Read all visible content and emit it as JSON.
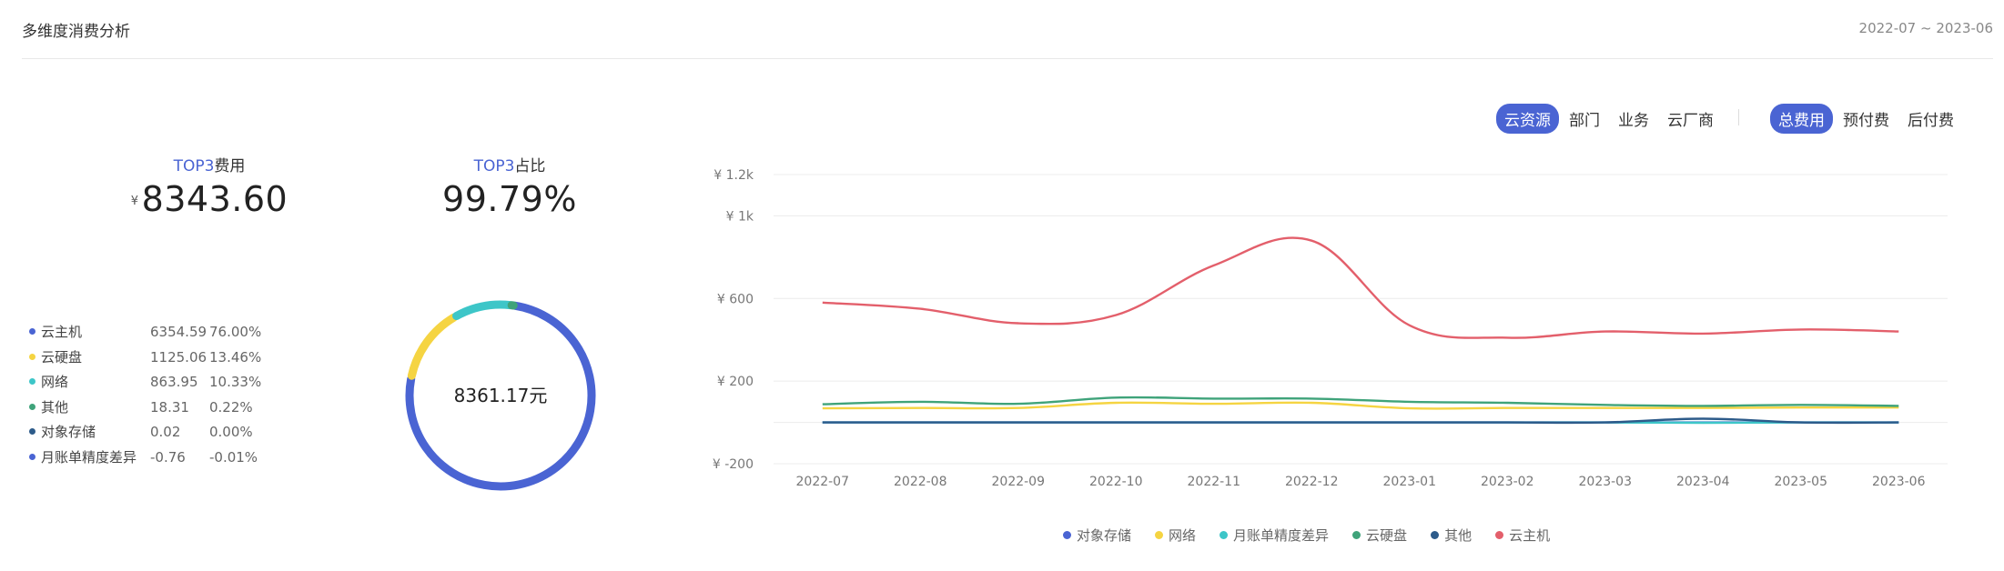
{
  "header": {
    "title": "多维度消费分析",
    "range": "2022-07 ~ 2023-06"
  },
  "stats": {
    "top3_cost": {
      "label_prefix": "TOP3",
      "label_suffix": "费用",
      "currency": "¥",
      "value": "8343.60"
    },
    "top3_ratio": {
      "label_prefix": "TOP3",
      "label_suffix": "占比",
      "value": "99.79%"
    }
  },
  "breakdown": [
    {
      "name": "云主机",
      "amount": "6354.59",
      "percent": "76.00%",
      "color": "#4a64d3"
    },
    {
      "name": "云硬盘",
      "amount": "1125.06",
      "percent": "13.46%",
      "color": "#f5d442"
    },
    {
      "name": "网络",
      "amount": "863.95",
      "percent": "10.33%",
      "color": "#3dc6c8"
    },
    {
      "name": "其他",
      "amount": "18.31",
      "percent": "0.22%",
      "color": "#3fa37a"
    },
    {
      "name": "对象存储",
      "amount": "0.02",
      "percent": "0.00%",
      "color": "#2d5b8a"
    },
    {
      "name": "月账单精度差异",
      "amount": "-0.76",
      "percent": "-0.01%",
      "color": "#4a64d3"
    }
  ],
  "donut": {
    "center_label": "8361.17元",
    "segments": [
      76.0,
      13.46,
      10.33,
      0.22
    ]
  },
  "filters": {
    "dimension": [
      "云资源",
      "部门",
      "业务",
      "云厂商"
    ],
    "dimension_active": 0,
    "fee_type": [
      "总费用",
      "预付费",
      "后付费"
    ],
    "fee_type_active": 0
  },
  "chart_data": {
    "type": "line",
    "categories": [
      "2022-07",
      "2022-08",
      "2022-09",
      "2022-10",
      "2022-11",
      "2022-12",
      "2023-01",
      "2023-02",
      "2023-03",
      "2023-04",
      "2023-05",
      "2023-06"
    ],
    "ytick_labels": [
      "¥ -200",
      "¥ 200",
      "¥ 600",
      "¥ 1k",
      "¥ 1.2k"
    ],
    "ytick_values": [
      -200,
      200,
      600,
      1000,
      1200
    ],
    "ylim": [
      -200,
      1200
    ],
    "grid": true,
    "legend_position": "bottom",
    "series": [
      {
        "name": "对象存储",
        "color": "#4a64d3",
        "values": [
          0,
          0,
          0,
          0,
          0,
          0,
          0,
          0,
          0,
          0,
          0,
          0
        ]
      },
      {
        "name": "网络",
        "color": "#f5d442",
        "values": [
          68,
          70,
          70,
          95,
          90,
          95,
          68,
          70,
          70,
          70,
          72,
          72
        ]
      },
      {
        "name": "月账单精度差异",
        "color": "#3dc6c8",
        "values": [
          0,
          0,
          0,
          0,
          0,
          0,
          0,
          0,
          0,
          -2,
          0,
          0
        ]
      },
      {
        "name": "云硬盘",
        "color": "#3fa37a",
        "values": [
          88,
          100,
          90,
          120,
          115,
          115,
          100,
          95,
          85,
          80,
          85,
          80
        ]
      },
      {
        "name": "其他",
        "color": "#2d5b8a",
        "values": [
          0,
          0,
          0,
          0,
          0,
          0,
          0,
          0,
          0,
          18,
          0,
          0
        ]
      },
      {
        "name": "云主机",
        "color": "#e35f6b",
        "values": [
          580,
          550,
          480,
          520,
          760,
          880,
          470,
          410,
          440,
          430,
          450,
          440
        ]
      }
    ]
  }
}
